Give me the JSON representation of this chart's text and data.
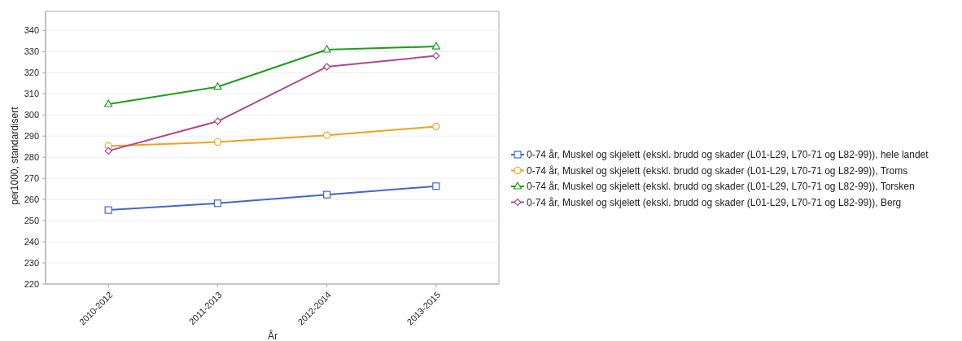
{
  "chart_data": {
    "type": "line",
    "xlabel": "År",
    "ylabel": "per1000, standardisert",
    "categories": [
      "2010-2012",
      "2011-2013",
      "2012-2014",
      "2013-2015"
    ],
    "ylim": [
      220,
      349
    ],
    "yticks": [
      220,
      230,
      240,
      250,
      260,
      270,
      280,
      290,
      300,
      310,
      320,
      330,
      340
    ],
    "grid": "y",
    "legend": "right",
    "series": [
      {
        "name": "0-74 år, Muskel og skjelett (ekskl. brudd og skader (L01-L29, L70-71 og L82-99)), hele landet",
        "color": "#4466cc",
        "marker": "square",
        "values": [
          255.0,
          258.2,
          262.3,
          266.3
        ]
      },
      {
        "name": "0-74 år, Muskel og skjelett (ekskl. brudd og skader (L01-L29, L70-71 og L82-99)), Troms",
        "color": "#f0a020",
        "marker": "circle",
        "values": [
          285.3,
          287.2,
          290.4,
          294.5
        ]
      },
      {
        "name": "0-74 år, Muskel og skjelett (ekskl. brudd og skader (L01-L29, L70-71 og L82-99)), Torsken",
        "color": "#1a9e1a",
        "marker": "triangle",
        "values": [
          305.1,
          313.3,
          330.9,
          332.4
        ]
      },
      {
        "name": "0-74 år, Muskel og skjelett (ekskl. brudd og skader (L01-L29, L70-71 og L82-99)), Berg",
        "color": "#b04a88",
        "marker": "diamond",
        "values": [
          283.0,
          297.0,
          322.8,
          328.0
        ]
      }
    ]
  }
}
